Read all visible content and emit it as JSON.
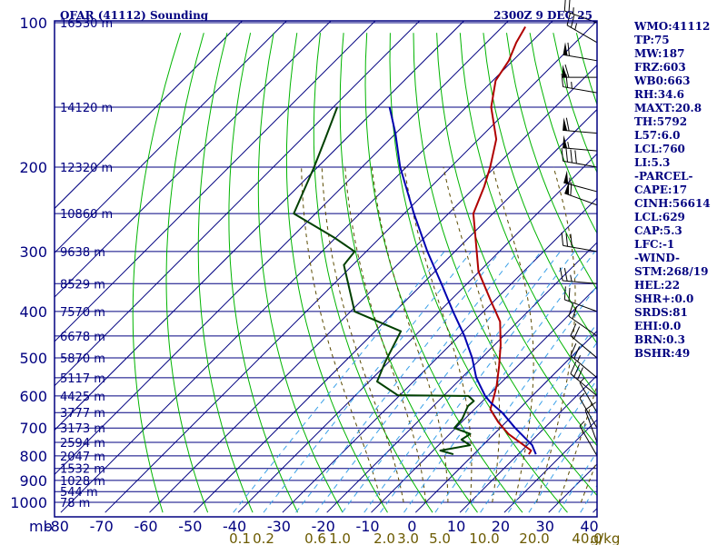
{
  "header": {
    "title": "OFAR (41112) Sounding",
    "valid_time": "2300Z  9 DEC 25"
  },
  "stats": [
    "WMO:41112",
    "TP:75",
    "MW:187",
    "FRZ:603",
    "WB0:663",
    "RH:34.6",
    "MAXT:20.8",
    "TH:5792",
    "L57:6.0",
    "LCL:760",
    "LI:5.3",
    "-PARCEL-",
    "CAPE:17",
    "CINH:56614",
    "LCL:629",
    "CAP:5.3",
    "LFC:-1",
    "-WIND-",
    "STM:268/19",
    "HEL:22",
    "SHR+:0.0",
    "SRDS:81",
    "EHI:0.0",
    "BRN:0.3",
    "BSHR:49"
  ],
  "chart_data": {
    "type": "line",
    "chart_kind": "skew-T log-P sounding diagram",
    "title": "OFAR (41112) Sounding",
    "valid_time": "2300Z  9 DEC 25",
    "pressure_unit": "mb",
    "mixing_ratio_unit": "g/kg",
    "pressure_range": [
      1000,
      100
    ],
    "temperature_range": [
      -80,
      40
    ],
    "pressure_ticks": [
      100,
      200,
      300,
      400,
      500,
      600,
      700,
      800,
      900,
      1000
    ],
    "pressure_labels": [
      "100",
      "200",
      "300",
      "400",
      "500",
      "600",
      "700",
      "800",
      "900",
      "1000"
    ],
    "temperature_ticks": [
      -80,
      -70,
      -60,
      -50,
      -40,
      -30,
      -20,
      -10,
      0,
      10,
      20,
      30,
      40
    ],
    "temperature_labels": [
      "-80",
      "-70",
      "-60",
      "-50",
      "-40",
      "-30",
      "-20",
      "-10",
      "0",
      "10",
      "20",
      "30",
      "40"
    ],
    "height_labels": [
      {
        "p": 100,
        "label": "16530 m"
      },
      {
        "p": 150,
        "label": "14120 m"
      },
      {
        "p": 200,
        "label": "12320 m"
      },
      {
        "p": 250,
        "label": "10860 m"
      },
      {
        "p": 300,
        "label": "9638 m"
      },
      {
        "p": 350,
        "label": "8529 m"
      },
      {
        "p": 400,
        "label": "7570 m"
      },
      {
        "p": 450,
        "label": "6678 m"
      },
      {
        "p": 500,
        "label": "5870 m"
      },
      {
        "p": 550,
        "label": "5117 m"
      },
      {
        "p": 600,
        "label": "4425 m"
      },
      {
        "p": 650,
        "label": "3777 m"
      },
      {
        "p": 700,
        "label": "3173 m"
      },
      {
        "p": 750,
        "label": "2594 m"
      },
      {
        "p": 800,
        "label": "2047 m"
      },
      {
        "p": 850,
        "label": "1532 m"
      },
      {
        "p": 900,
        "label": "1028 m"
      },
      {
        "p": 950,
        "label": "544 m"
      },
      {
        "p": 1000,
        "label": "78 m"
      }
    ],
    "mixing_ratio_labels": [
      {
        "w": 0.1,
        "label": "0.1"
      },
      {
        "w": 0.2,
        "label": "0.2"
      },
      {
        "w": 0.6,
        "label": "0.6"
      },
      {
        "w": 1.0,
        "label": "1.0"
      },
      {
        "w": 2.0,
        "label": "2.0"
      },
      {
        "w": 3.0,
        "label": "3.0"
      },
      {
        "w": 5.0,
        "label": "5.0"
      },
      {
        "w": 10.0,
        "label": "10.0"
      },
      {
        "w": 20.0,
        "label": "20.0"
      },
      {
        "w": 40.0,
        "label": "40.0"
      }
    ],
    "series": [
      {
        "name": "temperature",
        "color": "#b00000",
        "points": [
          [
            794,
            12.4
          ],
          [
            780,
            12.1
          ],
          [
            760,
            9.2
          ],
          [
            720,
            3.2
          ],
          [
            680,
            -1.8
          ],
          [
            640,
            -6.4
          ],
          [
            600,
            -8.6
          ],
          [
            570,
            -10.4
          ],
          [
            520,
            -14.2
          ],
          [
            470,
            -18.6
          ],
          [
            420,
            -24.0
          ],
          [
            380,
            -30.8
          ],
          [
            330,
            -40.2
          ],
          [
            280,
            -48.6
          ],
          [
            250,
            -54.4
          ],
          [
            220,
            -58.0
          ],
          [
            200,
            -61.1
          ],
          [
            175,
            -66.0
          ],
          [
            150,
            -74.4
          ],
          [
            132,
            -79.4
          ],
          [
            120,
            -80.9
          ],
          [
            110,
            -83.3
          ],
          [
            102,
            -84.8
          ]
        ]
      },
      {
        "name": "dewpoint",
        "color": "#004000",
        "points": [
          [
            794,
            -4.6
          ],
          [
            780,
            -8.4
          ],
          [
            760,
            -2.9
          ],
          [
            740,
            -6.1
          ],
          [
            720,
            -5.4
          ],
          [
            700,
            -10.3
          ],
          [
            670,
            -10.6
          ],
          [
            630,
            -12.2
          ],
          [
            615,
            -12.0
          ],
          [
            600,
            -14.4
          ],
          [
            598,
            -30.5
          ],
          [
            560,
            -38.2
          ],
          [
            510,
            -40.8
          ],
          [
            440,
            -44.2
          ],
          [
            400,
            -59.1
          ],
          [
            320,
            -72.0
          ],
          [
            300,
            -72.6
          ],
          [
            280,
            -80.6
          ],
          [
            250,
            -94.9
          ],
          [
            200,
            -100.8
          ],
          [
            175,
            -104.6
          ],
          [
            150,
            -109.1
          ]
        ]
      },
      {
        "name": "parcel",
        "color": "#0000b0",
        "points": [
          [
            794,
            14.0
          ],
          [
            760,
            11.1
          ],
          [
            700,
            3.4
          ],
          [
            650,
            -3.0
          ],
          [
            620,
            -7.8
          ],
          [
            600,
            -10.6
          ],
          [
            550,
            -16.7
          ],
          [
            500,
            -22.1
          ],
          [
            450,
            -28.8
          ],
          [
            400,
            -36.9
          ],
          [
            350,
            -45.8
          ],
          [
            300,
            -56.2
          ],
          [
            250,
            -67.8
          ],
          [
            200,
            -81.4
          ],
          [
            170,
            -90.1
          ],
          [
            150,
            -97.3
          ]
        ]
      }
    ],
    "wind_barbs": [
      {
        "p": 100,
        "dir": 290,
        "spd": 25
      },
      {
        "p": 110,
        "dir": 300,
        "spd": 25
      },
      {
        "p": 120,
        "dir": 280,
        "spd": 60
      },
      {
        "p": 130,
        "dir": 270,
        "spd": 60
      },
      {
        "p": 140,
        "dir": 280,
        "spd": 25
      },
      {
        "p": 170,
        "dir": 275,
        "spd": 60
      },
      {
        "p": 185,
        "dir": 275,
        "spd": 55
      },
      {
        "p": 200,
        "dir": 280,
        "spd": 40
      },
      {
        "p": 225,
        "dir": 285,
        "spd": 55
      },
      {
        "p": 240,
        "dir": 290,
        "spd": 60
      },
      {
        "p": 300,
        "dir": 280,
        "spd": 30
      },
      {
        "p": 350,
        "dir": 275,
        "spd": 25
      },
      {
        "p": 400,
        "dir": 290,
        "spd": 20
      },
      {
        "p": 450,
        "dir": 305,
        "spd": 20
      },
      {
        "p": 500,
        "dir": 310,
        "spd": 20
      },
      {
        "p": 550,
        "dir": 310,
        "spd": 25
      },
      {
        "p": 600,
        "dir": 310,
        "spd": 30
      },
      {
        "p": 650,
        "dir": 330,
        "spd": 5
      },
      {
        "p": 700,
        "dir": 330,
        "spd": 5
      },
      {
        "p": 750,
        "dir": 340,
        "spd": 10
      },
      {
        "p": 800,
        "dir": 330,
        "spd": 5
      }
    ],
    "colors": {
      "frame": "#000080",
      "isotherm": "#000080",
      "isobar": "#000080",
      "dry_adiabat": "#00b400",
      "moist_adiabat": "#5a4a00",
      "mixing_ratio": "#3aa0e8",
      "label_mixing": "#6b5a00"
    }
  }
}
